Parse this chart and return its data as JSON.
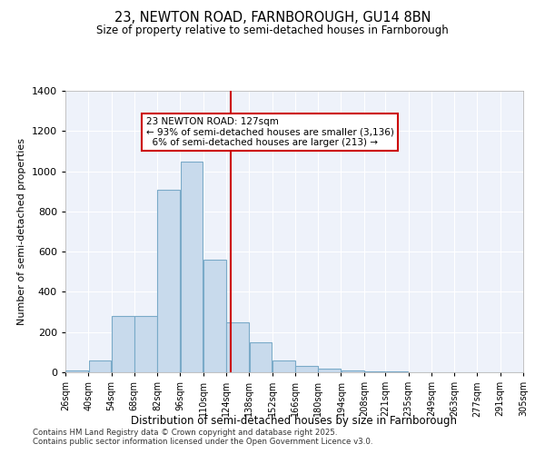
{
  "title1": "23, NEWTON ROAD, FARNBOROUGH, GU14 8BN",
  "title2": "Size of property relative to semi-detached houses in Farnborough",
  "xlabel": "Distribution of semi-detached houses by size in Farnborough",
  "ylabel": "Number of semi-detached properties",
  "property_label": "23 NEWTON ROAD: 127sqm",
  "pct_smaller": 93,
  "count_smaller": 3136,
  "pct_larger": 6,
  "count_larger": 213,
  "bin_edges": [
    26,
    40,
    54,
    68,
    82,
    96,
    110,
    124,
    138,
    152,
    166,
    180,
    194,
    208,
    221,
    235,
    249,
    263,
    277,
    291,
    305
  ],
  "bar_heights": [
    10,
    60,
    280,
    280,
    910,
    1050,
    560,
    250,
    150,
    60,
    30,
    20,
    10,
    5,
    5,
    0,
    0,
    0,
    0,
    0
  ],
  "bar_color": "#c8daec",
  "bar_edge_color": "#7aaac8",
  "vline_color": "#cc0000",
  "vline_x": 127,
  "annotation_box_color": "#cc0000",
  "background_color": "#eef2fa",
  "footer1": "Contains HM Land Registry data © Crown copyright and database right 2025.",
  "footer2": "Contains public sector information licensed under the Open Government Licence v3.0.",
  "ylim": [
    0,
    1400
  ],
  "yticks": [
    0,
    200,
    400,
    600,
    800,
    1000,
    1200,
    1400
  ]
}
